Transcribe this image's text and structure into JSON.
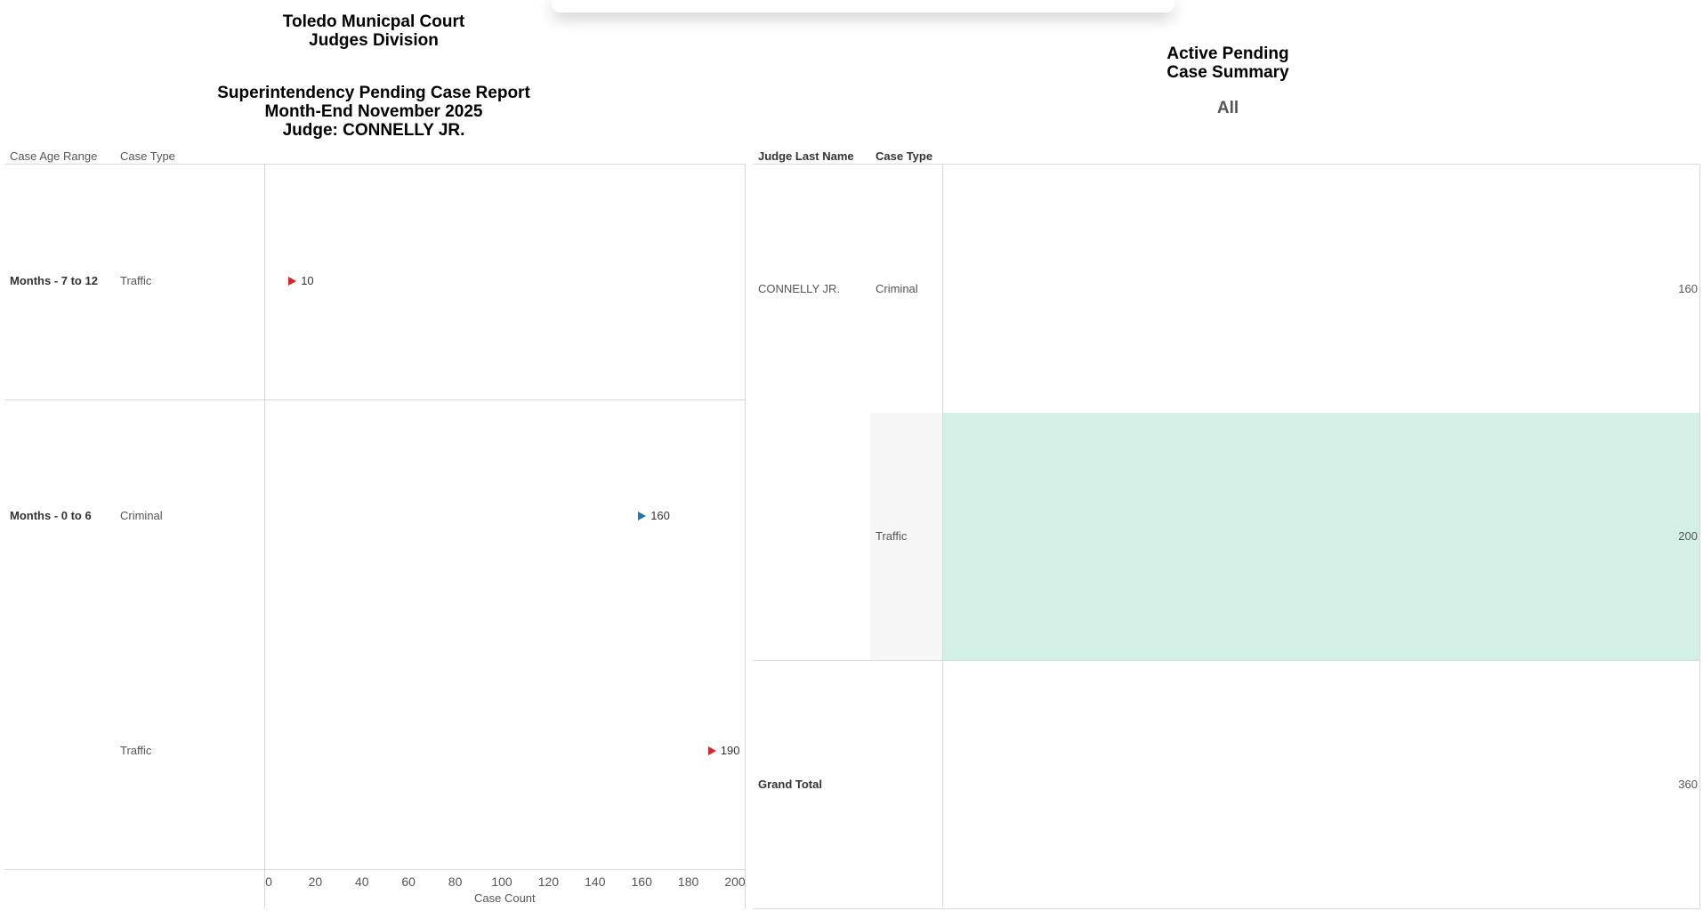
{
  "left": {
    "title_lines": [
      "Toledo Municpal Court",
      "Judges Division"
    ],
    "subtitle_lines": [
      "Superintendency Pending Case Report",
      "Month-End November 2025",
      "Judge: CONNELLY JR."
    ],
    "col_headers": {
      "age_range": "Case Age Range",
      "case_type": "Case Type"
    },
    "rows": [
      {
        "age_range": "Months - 7 to 12",
        "case_type": "Traffic",
        "value_label": "10"
      },
      {
        "age_range": "Months - 0 to 6",
        "case_type": "Criminal",
        "value_label": "160"
      },
      {
        "age_range": "",
        "case_type": "Traffic",
        "value_label": "190"
      }
    ],
    "axis_title": "Case Count"
  },
  "chart_data": {
    "type": "scatter",
    "categories": [
      "Months - 7 to 12 / Traffic",
      "Months - 0 to 6 / Criminal",
      "Months - 0 to 6 / Traffic"
    ],
    "values": [
      10,
      160,
      190
    ],
    "xlabel": "Case Count",
    "xlim": [
      0,
      200
    ],
    "ticks": [
      "0",
      "20",
      "40",
      "60",
      "80",
      "100",
      "120",
      "140",
      "160",
      "180",
      "200"
    ],
    "marker_colors": [
      "#d62728",
      "#1f77b4",
      "#d62728"
    ]
  },
  "right": {
    "title_lines": [
      "Active Pending",
      "Case Summary"
    ],
    "filter_value": "All",
    "col_headers": {
      "judge": "Judge Last Name",
      "case_type": "Case Type"
    },
    "judge_name": "CONNELLY JR.",
    "rows": [
      {
        "case_type": "Criminal",
        "value": "160"
      },
      {
        "case_type": "Traffic",
        "value": "200"
      }
    ],
    "grand_total_label": "Grand Total",
    "grand_total_value": "360",
    "highlight_color": "#d3f0e6"
  }
}
